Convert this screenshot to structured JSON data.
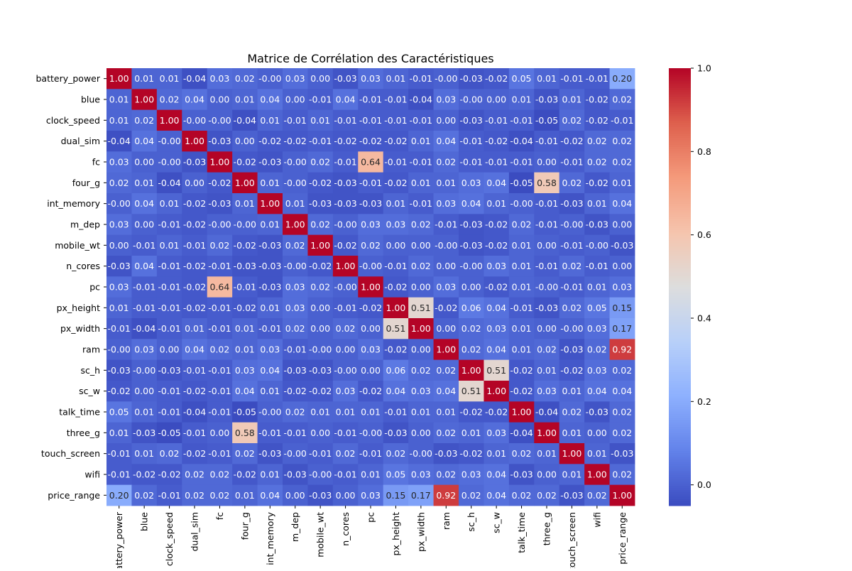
{
  "chart_data": {
    "type": "heatmap",
    "title": "Matrice de Corrélation des Caractéristiques",
    "labels": [
      "battery_power",
      "blue",
      "clock_speed",
      "dual_sim",
      "fc",
      "four_g",
      "int_memory",
      "m_dep",
      "mobile_wt",
      "n_cores",
      "pc",
      "px_height",
      "px_width",
      "ram",
      "sc_h",
      "sc_w",
      "talk_time",
      "three_g",
      "touch_screen",
      "wifi",
      "price_range"
    ],
    "matrix": [
      [
        1.0,
        0.01,
        0.01,
        -0.04,
        0.03,
        0.02,
        -0.0,
        0.03,
        0.0,
        -0.03,
        0.03,
        0.01,
        -0.01,
        -0.0,
        -0.03,
        -0.02,
        0.05,
        0.01,
        -0.01,
        -0.01,
        0.2
      ],
      [
        0.01,
        1.0,
        0.02,
        0.04,
        0.0,
        0.01,
        0.04,
        0.0,
        -0.01,
        0.04,
        -0.01,
        -0.01,
        -0.04,
        0.03,
        -0.0,
        0.0,
        0.01,
        -0.03,
        0.01,
        -0.02,
        0.02
      ],
      [
        0.01,
        0.02,
        1.0,
        -0.0,
        -0.0,
        -0.04,
        0.01,
        -0.01,
        0.01,
        -0.01,
        -0.01,
        -0.01,
        -0.01,
        0.0,
        -0.03,
        -0.01,
        -0.01,
        -0.05,
        0.02,
        -0.02,
        -0.01
      ],
      [
        -0.04,
        0.04,
        -0.0,
        1.0,
        -0.03,
        0.0,
        -0.02,
        -0.02,
        -0.01,
        -0.02,
        -0.02,
        -0.02,
        0.01,
        0.04,
        -0.01,
        -0.02,
        -0.04,
        -0.01,
        -0.02,
        0.02,
        0.02
      ],
      [
        0.03,
        0.0,
        -0.0,
        -0.03,
        1.0,
        -0.02,
        -0.03,
        -0.0,
        0.02,
        -0.01,
        0.64,
        -0.01,
        -0.01,
        0.02,
        -0.01,
        -0.01,
        -0.01,
        0.0,
        -0.01,
        0.02,
        0.02
      ],
      [
        0.02,
        0.01,
        -0.04,
        0.0,
        -0.02,
        1.0,
        0.01,
        -0.0,
        -0.02,
        -0.03,
        -0.01,
        -0.02,
        0.01,
        0.01,
        0.03,
        0.04,
        -0.05,
        0.58,
        0.02,
        -0.02,
        0.01
      ],
      [
        -0.0,
        0.04,
        0.01,
        -0.02,
        -0.03,
        0.01,
        1.0,
        0.01,
        -0.03,
        -0.03,
        -0.03,
        0.01,
        -0.01,
        0.03,
        0.04,
        0.01,
        -0.0,
        -0.01,
        -0.03,
        0.01,
        0.04
      ],
      [
        0.03,
        0.0,
        -0.01,
        -0.02,
        -0.0,
        -0.0,
        0.01,
        1.0,
        0.02,
        -0.0,
        0.03,
        0.03,
        0.02,
        -0.01,
        -0.03,
        -0.02,
        0.02,
        -0.01,
        -0.0,
        -0.03,
        0.0
      ],
      [
        0.0,
        -0.01,
        0.01,
        -0.01,
        0.02,
        -0.02,
        -0.03,
        0.02,
        1.0,
        -0.02,
        0.02,
        0.0,
        0.0,
        -0.0,
        -0.03,
        -0.02,
        0.01,
        0.0,
        -0.01,
        -0.0,
        -0.03
      ],
      [
        -0.03,
        0.04,
        -0.01,
        -0.02,
        -0.01,
        -0.03,
        -0.03,
        -0.0,
        -0.02,
        1.0,
        -0.0,
        -0.01,
        0.02,
        0.0,
        -0.0,
        0.03,
        0.01,
        -0.01,
        0.02,
        -0.01,
        0.0
      ],
      [
        0.03,
        -0.01,
        -0.01,
        -0.02,
        0.64,
        -0.01,
        -0.03,
        0.03,
        0.02,
        -0.0,
        1.0,
        -0.02,
        0.0,
        0.03,
        0.0,
        -0.02,
        0.01,
        -0.0,
        -0.01,
        0.01,
        0.03
      ],
      [
        0.01,
        -0.01,
        -0.01,
        -0.02,
        -0.01,
        -0.02,
        0.01,
        0.03,
        0.0,
        -0.01,
        -0.02,
        1.0,
        0.51,
        -0.02,
        0.06,
        0.04,
        -0.01,
        -0.03,
        0.02,
        0.05,
        0.15
      ],
      [
        -0.01,
        -0.04,
        -0.01,
        0.01,
        -0.01,
        0.01,
        -0.01,
        0.02,
        0.0,
        0.02,
        0.0,
        0.51,
        1.0,
        0.0,
        0.02,
        0.03,
        0.01,
        0.0,
        -0.0,
        0.03,
        0.17
      ],
      [
        -0.0,
        0.03,
        0.0,
        0.04,
        0.02,
        0.01,
        0.03,
        -0.01,
        -0.0,
        0.0,
        0.03,
        -0.02,
        0.0,
        1.0,
        0.02,
        0.04,
        0.01,
        0.02,
        -0.03,
        0.02,
        0.92
      ],
      [
        -0.03,
        -0.0,
        -0.03,
        -0.01,
        -0.01,
        0.03,
        0.04,
        -0.03,
        -0.03,
        -0.0,
        0.0,
        0.06,
        0.02,
        0.02,
        1.0,
        0.51,
        -0.02,
        0.01,
        -0.02,
        0.03,
        0.02
      ],
      [
        -0.02,
        0.0,
        -0.01,
        -0.02,
        -0.01,
        0.04,
        0.01,
        -0.02,
        -0.02,
        0.03,
        -0.02,
        0.04,
        0.03,
        0.04,
        0.51,
        1.0,
        -0.02,
        0.03,
        0.01,
        0.04,
        0.04
      ],
      [
        0.05,
        0.01,
        -0.01,
        -0.04,
        -0.01,
        -0.05,
        -0.0,
        0.02,
        0.01,
        0.01,
        0.01,
        -0.01,
        0.01,
        0.01,
        -0.02,
        -0.02,
        1.0,
        -0.04,
        0.02,
        -0.03,
        0.02
      ],
      [
        0.01,
        -0.03,
        -0.05,
        -0.01,
        0.0,
        0.58,
        -0.01,
        -0.01,
        0.0,
        -0.01,
        -0.0,
        -0.03,
        0.0,
        0.02,
        0.01,
        0.03,
        -0.04,
        1.0,
        0.01,
        0.0,
        0.02
      ],
      [
        -0.01,
        0.01,
        0.02,
        -0.02,
        -0.01,
        0.02,
        -0.03,
        -0.0,
        -0.01,
        0.02,
        -0.01,
        0.02,
        -0.0,
        -0.03,
        -0.02,
        0.01,
        0.02,
        0.01,
        1.0,
        0.01,
        -0.03
      ],
      [
        -0.01,
        -0.02,
        -0.02,
        0.02,
        0.02,
        -0.02,
        0.01,
        -0.03,
        -0.0,
        -0.01,
        0.01,
        0.05,
        0.03,
        0.02,
        0.03,
        0.04,
        -0.03,
        0.0,
        0.01,
        1.0,
        0.02
      ],
      [
        0.2,
        0.02,
        -0.01,
        0.02,
        0.02,
        0.01,
        0.04,
        0.0,
        -0.03,
        0.0,
        0.03,
        0.15,
        0.17,
        0.92,
        0.02,
        0.04,
        0.02,
        0.02,
        -0.03,
        0.02,
        1.0
      ]
    ],
    "colorbar": {
      "colormap": "coolwarm",
      "min": -0.05,
      "max": 1.0,
      "ticks": [
        0.0,
        0.2,
        0.4,
        0.6,
        0.8,
        1.0
      ],
      "tick_labels": [
        "0.0",
        "0.2",
        "0.4",
        "0.6",
        "0.8",
        "1.0"
      ]
    },
    "annotations": "values shown in each cell, 2 decimals",
    "legend": "colorbar-right"
  }
}
